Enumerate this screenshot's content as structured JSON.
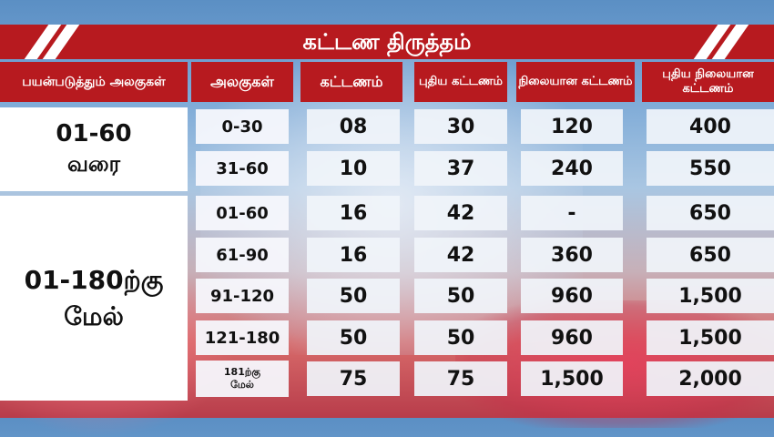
{
  "title": "கட்டண திருத்தம்",
  "headers": {
    "usage_units": "பயன்படுத்தும் அலகுகள்",
    "units": "அலகுகள்",
    "tariff": "கட்டணம்",
    "new_tariff": "புதிய கட்டணம்",
    "fixed_charge": "நிலையான கட்டணம்",
    "new_fixed_charge": "புதிய நிலையான கட்டணம்"
  },
  "groups": [
    {
      "line1": "01-60",
      "line2": "வரை"
    },
    {
      "line1": "01-180ற்கு",
      "line2": "மேல்"
    }
  ],
  "rows": [
    {
      "range": "0-30",
      "tariff": "08",
      "new_tariff": "30",
      "fixed": "120",
      "new_fixed": "400"
    },
    {
      "range": "31-60",
      "tariff": "10",
      "new_tariff": "37",
      "fixed": "240",
      "new_fixed": "550"
    },
    {
      "range": "01-60",
      "tariff": "16",
      "new_tariff": "42",
      "fixed": "-",
      "new_fixed": "650"
    },
    {
      "range": "61-90",
      "tariff": "16",
      "new_tariff": "42",
      "fixed": "360",
      "new_fixed": "650"
    },
    {
      "range": "91-120",
      "tariff": "50",
      "new_tariff": "50",
      "fixed": "960",
      "new_fixed": "1,500"
    },
    {
      "range": "121-180",
      "tariff": "50",
      "new_tariff": "50",
      "fixed": "960",
      "new_fixed": "1,500"
    },
    {
      "range_line1": "181ற்கு",
      "range_line2": "மேல்",
      "tariff": "75",
      "new_tariff": "75",
      "fixed": "1,500",
      "new_fixed": "2,000"
    }
  ]
}
